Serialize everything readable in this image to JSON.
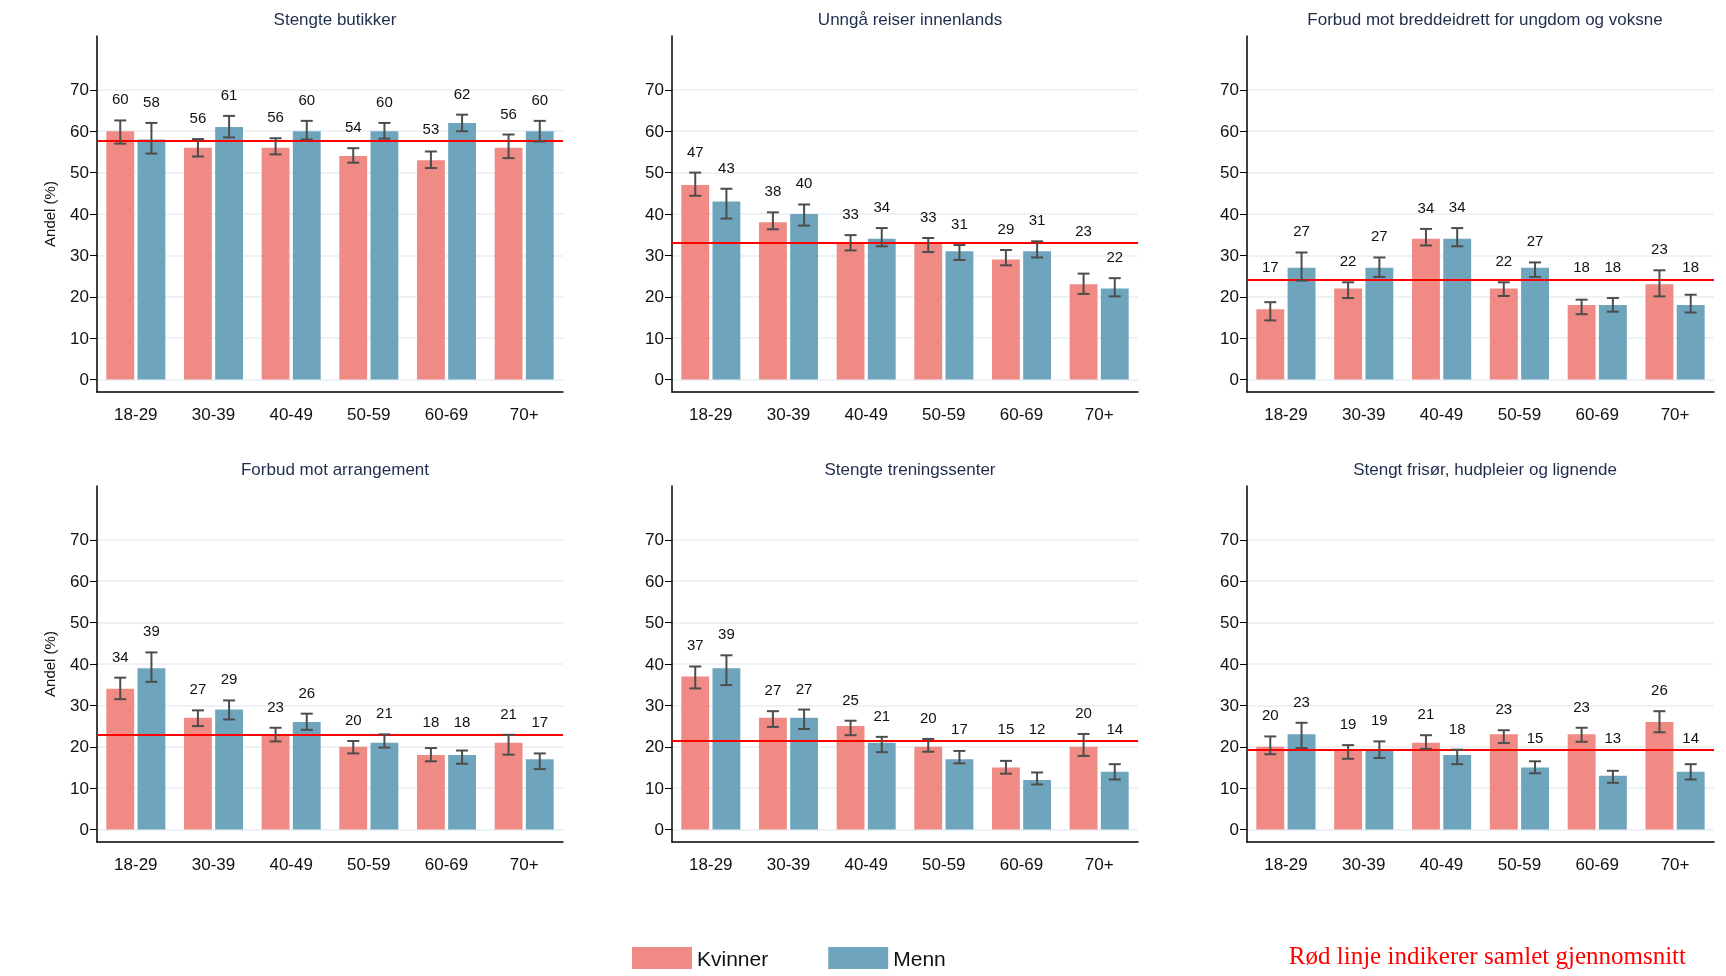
{
  "chart_data": [
    {
      "type": "bar",
      "title": "Stengte butikker",
      "ylabel": "Andel (%)",
      "categories": [
        "18-29",
        "30-39",
        "40-49",
        "50-59",
        "60-69",
        "70+"
      ],
      "series": [
        {
          "color": "#f08a84",
          "values": [
            60,
            56,
            56,
            54,
            53,
            56
          ],
          "errors": [
            [
              57.0,
              62.6
            ],
            [
              53.9,
              58.1
            ],
            [
              54.4,
              58.3
            ],
            [
              52.4,
              55.9
            ],
            [
              51.1,
              55.1
            ],
            [
              53.5,
              59.2
            ]
          ]
        },
        {
          "color": "#6ea5bd",
          "values": [
            58,
            61,
            60,
            60,
            62,
            60
          ],
          "errors": [
            [
              54.6,
              62.0
            ],
            [
              58.5,
              63.7
            ],
            [
              58.0,
              62.5
            ],
            [
              58.2,
              62.0
            ],
            [
              60.0,
              64.0
            ],
            [
              57.5,
              62.5
            ]
          ]
        }
      ],
      "ylim": [
        -3,
        83
      ],
      "yticks": [
        0,
        10,
        20,
        30,
        40,
        50,
        60,
        70
      ],
      "grid": "y",
      "data_labels": true,
      "ref_lines": [
        {
          "axis": "y",
          "value": 57.7,
          "label": null,
          "color": "#ff0000"
        }
      ]
    },
    {
      "type": "bar",
      "title": "Unngå reiser innenlands",
      "categories": [
        "18-29",
        "30-39",
        "40-49",
        "50-59",
        "60-69",
        "70+"
      ],
      "series": [
        {
          "color": "#f08a84",
          "values": [
            47,
            38,
            33,
            33,
            29,
            23
          ],
          "errors": [
            [
              44.4,
              50.0
            ],
            [
              36.3,
              40.4
            ],
            [
              31.2,
              34.9
            ],
            [
              30.8,
              34.2
            ],
            [
              27.6,
              31.3
            ],
            [
              20.7,
              25.6
            ]
          ]
        },
        {
          "color": "#6ea5bd",
          "values": [
            43,
            40,
            34,
            31,
            31,
            22
          ],
          "errors": [
            [
              38.9,
              46.1
            ],
            [
              37.2,
              42.3
            ],
            [
              32.2,
              36.6
            ],
            [
              28.9,
              32.5
            ],
            [
              29.5,
              33.4
            ],
            [
              20.1,
              24.5
            ]
          ]
        }
      ],
      "ylim": [
        -3,
        83
      ],
      "yticks": [
        0,
        10,
        20,
        30,
        40,
        50,
        60,
        70
      ],
      "grid": "y",
      "data_labels": true,
      "ref_lines": [
        {
          "axis": "y",
          "value": 33.1,
          "label": null,
          "color": "#ff0000"
        }
      ]
    },
    {
      "type": "bar",
      "title": "Forbud mot breddeidrett for ungdom og voksne",
      "categories": [
        "18-29",
        "30-39",
        "40-49",
        "50-59",
        "60-69",
        "70+"
      ],
      "series": [
        {
          "color": "#f08a84",
          "values": [
            17,
            22,
            34,
            22,
            18,
            23
          ],
          "errors": [
            [
              14.3,
              18.7
            ],
            [
              19.7,
              23.5
            ],
            [
              32.4,
              36.4
            ],
            [
              20.2,
              23.5
            ],
            [
              15.8,
              19.3
            ],
            [
              20.1,
              26.4
            ]
          ]
        },
        {
          "color": "#6ea5bd",
          "values": [
            27,
            27,
            34,
            27,
            18,
            18
          ],
          "errors": [
            [
              23.9,
              30.7
            ],
            [
              24.8,
              29.5
            ],
            [
              32.2,
              36.6
            ],
            [
              24.8,
              28.3
            ],
            [
              16.4,
              19.7
            ],
            [
              16.2,
              20.5
            ]
          ]
        }
      ],
      "ylim": [
        -3,
        83
      ],
      "yticks": [
        0,
        10,
        20,
        30,
        40,
        50,
        60,
        70
      ],
      "grid": "y",
      "data_labels": true,
      "ref_lines": [
        {
          "axis": "y",
          "value": 24.2,
          "label": null,
          "color": "#ff0000"
        }
      ]
    },
    {
      "type": "bar",
      "title": "Forbud mot arrangement",
      "ylabel": "Andel (%)",
      "categories": [
        "18-29",
        "30-39",
        "40-49",
        "50-59",
        "60-69",
        "70+"
      ],
      "series": [
        {
          "color": "#f08a84",
          "values": [
            34,
            27,
            23,
            20,
            18,
            21
          ],
          "errors": [
            [
              31.5,
              36.7
            ],
            [
              25.0,
              28.8
            ],
            [
              21.3,
              24.6
            ],
            [
              18.4,
              21.4
            ],
            [
              16.5,
              19.7
            ],
            [
              18.1,
              22.9
            ]
          ]
        },
        {
          "color": "#6ea5bd",
          "values": [
            39,
            29,
            26,
            21,
            18,
            17
          ],
          "errors": [
            [
              35.7,
              42.8
            ],
            [
              26.6,
              31.2
            ],
            [
              24.1,
              28.0
            ],
            [
              19.8,
              23.0
            ],
            [
              15.9,
              19.1
            ],
            [
              14.6,
              18.4
            ]
          ]
        }
      ],
      "ylim": [
        -3,
        83
      ],
      "yticks": [
        0,
        10,
        20,
        30,
        40,
        50,
        60,
        70
      ],
      "grid": "y",
      "data_labels": true,
      "ref_lines": [
        {
          "axis": "y",
          "value": 23,
          "label": null,
          "color": "#ff0000"
        }
      ]
    },
    {
      "type": "bar",
      "title": "Stengte treningssenter",
      "categories": [
        "18-29",
        "30-39",
        "40-49",
        "50-59",
        "60-69",
        "70+"
      ],
      "series": [
        {
          "name": "Kvinner",
          "color": "#f08a84",
          "values": [
            37,
            27,
            25,
            20,
            15,
            20
          ],
          "errors": [
            [
              34.1,
              39.4
            ],
            [
              24.8,
              28.6
            ],
            [
              22.8,
              26.3
            ],
            [
              18.8,
              21.9
            ],
            [
              13.5,
              16.6
            ],
            [
              17.8,
              23.1
            ]
          ]
        },
        {
          "name": "Menn",
          "color": "#6ea5bd",
          "values": [
            39,
            27,
            21,
            17,
            12,
            14
          ],
          "errors": [
            [
              34.9,
              42.1
            ],
            [
              24.3,
              29.0
            ],
            [
              18.7,
              22.4
            ],
            [
              16.0,
              19.0
            ],
            [
              10.9,
              13.8
            ],
            [
              12.1,
              15.8
            ]
          ]
        }
      ],
      "ylim": [
        -3,
        83
      ],
      "yticks": [
        0,
        10,
        20,
        30,
        40,
        50,
        60,
        70
      ],
      "grid": "y",
      "data_labels": true,
      "legend": "bottom",
      "ref_lines": [
        {
          "axis": "y",
          "value": 21.5,
          "label": null,
          "color": "#ff0000"
        }
      ]
    },
    {
      "type": "bar",
      "title": "Stengt frisør, hudpleier og lignende",
      "categories": [
        "18-29",
        "30-39",
        "40-49",
        "50-59",
        "60-69",
        "70+"
      ],
      "series": [
        {
          "color": "#f08a84",
          "values": [
            20,
            19,
            21,
            23,
            23,
            26
          ],
          "errors": [
            [
              18.2,
              22.5
            ],
            [
              17.1,
              20.4
            ],
            [
              19.5,
              22.8
            ],
            [
              20.9,
              24.0
            ],
            [
              21.2,
              24.6
            ],
            [
              23.5,
              28.6
            ]
          ]
        },
        {
          "color": "#6ea5bd",
          "values": [
            23,
            19,
            18,
            15,
            13,
            14
          ],
          "errors": [
            [
              19.7,
              25.8
            ],
            [
              17.3,
              21.3
            ],
            [
              15.8,
              19.3
            ],
            [
              13.6,
              16.5
            ],
            [
              11.3,
              14.2
            ],
            [
              12.1,
              15.8
            ]
          ]
        }
      ],
      "ylim": [
        -3,
        83
      ],
      "yticks": [
        0,
        10,
        20,
        30,
        40,
        50,
        60,
        70
      ],
      "grid": "y",
      "data_labels": true,
      "ref_lines": [
        {
          "axis": "y",
          "value": 19.2,
          "label": null,
          "color": "#ff0000"
        }
      ],
      "annotations": [
        "Rød linje indikerer samlet gjennomsnitt"
      ]
    }
  ]
}
